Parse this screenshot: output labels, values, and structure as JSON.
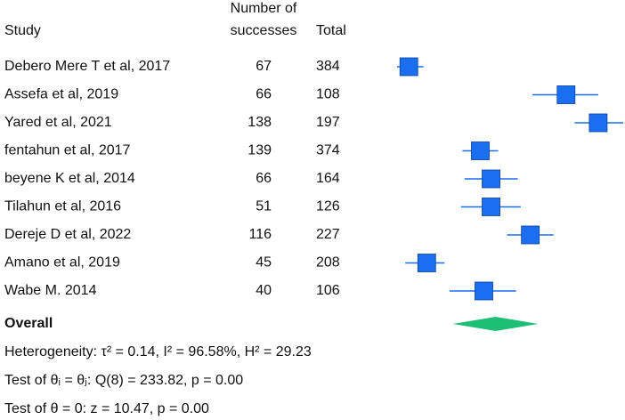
{
  "chart_data": {
    "type": "forest",
    "headers": {
      "study": "Study",
      "successes": [
        "Number of",
        "successes"
      ],
      "total": "Total"
    },
    "studies": [
      "Debero Mere T et al, 2017",
      "Assefa et al, 2019",
      "Yared et al, 2021",
      "fentahun et al, 2017",
      "beyene K et al, 2014",
      "Tilahun et al, 2016",
      "Dereje D et al, 2022",
      "Amano et al, 2019",
      "Wabe M. 2014"
    ],
    "successes": [
      67,
      66,
      138,
      139,
      66,
      51,
      116,
      45,
      40
    ],
    "totals": [
      384,
      108,
      197,
      374,
      164,
      126,
      227,
      208,
      106
    ],
    "estimates": [
      0.17,
      0.61,
      0.7,
      0.37,
      0.4,
      0.4,
      0.51,
      0.22,
      0.38
    ],
    "ci_low": [
      0.137,
      0.516,
      0.634,
      0.32,
      0.326,
      0.316,
      0.445,
      0.16,
      0.284
    ],
    "ci_high": [
      0.211,
      0.7,
      0.77,
      0.42,
      0.475,
      0.483,
      0.575,
      0.27,
      0.47
    ],
    "overall": {
      "label": "Overall",
      "estimate": 0.413,
      "ci_low": 0.293,
      "ci_high": 0.532
    },
    "notes": [
      "Heterogeneity: τ² = 0.14, I² = 96.58%, H² = 29.23",
      "Test of θᵢ = θⱼ: Q(8) = 233.82, p = 0.00",
      "Test of θ = 0: z = 10.47, p = 0.00"
    ],
    "xlim": [
      0,
      0.77
    ],
    "marker_color": "#1a6ef0",
    "overall_color": "#1dbf75"
  }
}
